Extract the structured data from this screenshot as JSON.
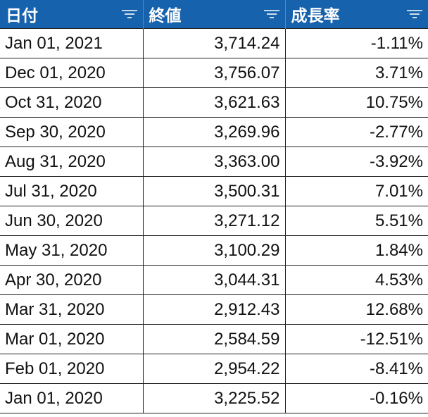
{
  "table": {
    "header": [
      "日付",
      "終値",
      "成長率"
    ],
    "rows": [
      [
        "Jan 01, 2021",
        "3,714.24",
        "-1.11%"
      ],
      [
        "Dec 01, 2020",
        "3,756.07",
        "3.71%"
      ],
      [
        "Oct 31, 2020",
        "3,621.63",
        "10.75%"
      ],
      [
        "Sep 30, 2020",
        "3,269.96",
        "-2.77%"
      ],
      [
        "Aug 31, 2020",
        "3,363.00",
        "-3.92%"
      ],
      [
        "Jul 31, 2020",
        "3,500.31",
        "7.01%"
      ],
      [
        "Jun 30, 2020",
        "3,271.12",
        "5.51%"
      ],
      [
        "May 31, 2020",
        "3,100.29",
        "1.84%"
      ],
      [
        "Apr 30, 2020",
        "3,044.31",
        "4.53%"
      ],
      [
        "Mar 31, 2020",
        "2,912.43",
        "12.68%"
      ],
      [
        "Mar 01, 2020",
        "2,584.59",
        "-12.51%"
      ],
      [
        "Feb 01, 2020",
        "2,954.22",
        "-8.41%"
      ],
      [
        "Jan 01, 2020",
        "3,225.52",
        "-0.16%"
      ]
    ]
  }
}
